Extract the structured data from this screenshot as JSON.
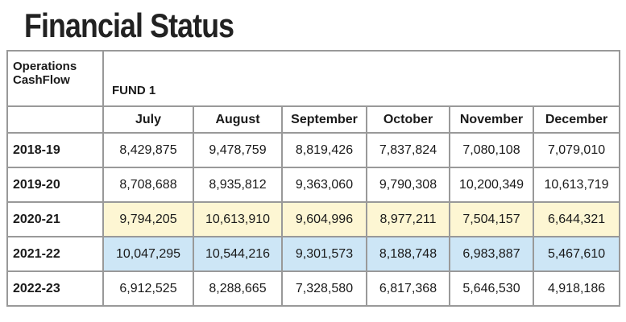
{
  "title": "Financial Status",
  "table": {
    "corner": "Operations CashFlow",
    "fund": "FUND 1",
    "columns": [
      "July",
      "August",
      "September",
      "October",
      "November",
      "December"
    ],
    "rows": [
      {
        "label": "2018-19",
        "values": [
          "8,429,875",
          "9,478,759",
          "8,819,426",
          "7,837,824",
          "7,080,108",
          "7,079,010"
        ]
      },
      {
        "label": "2019-20",
        "values": [
          "8,708,688",
          "8,935,812",
          "9,363,060",
          "9,790,308",
          "10,200,349",
          "10,613,719"
        ]
      },
      {
        "label": "2020-21",
        "values": [
          "9,794,205",
          "10,613,910",
          "9,604,996",
          "8,977,211",
          "7,504,157",
          "6,644,321"
        ]
      },
      {
        "label": "2021-22",
        "values": [
          "10,047,295",
          "10,544,216",
          "9,301,573",
          "8,188,748",
          "6,983,887",
          "5,467,610"
        ]
      },
      {
        "label": "2022-23",
        "values": [
          "6,912,525",
          "8,288,665",
          "7,328,580",
          "6,817,368",
          "5,646,530",
          "4,918,186"
        ]
      }
    ]
  }
}
